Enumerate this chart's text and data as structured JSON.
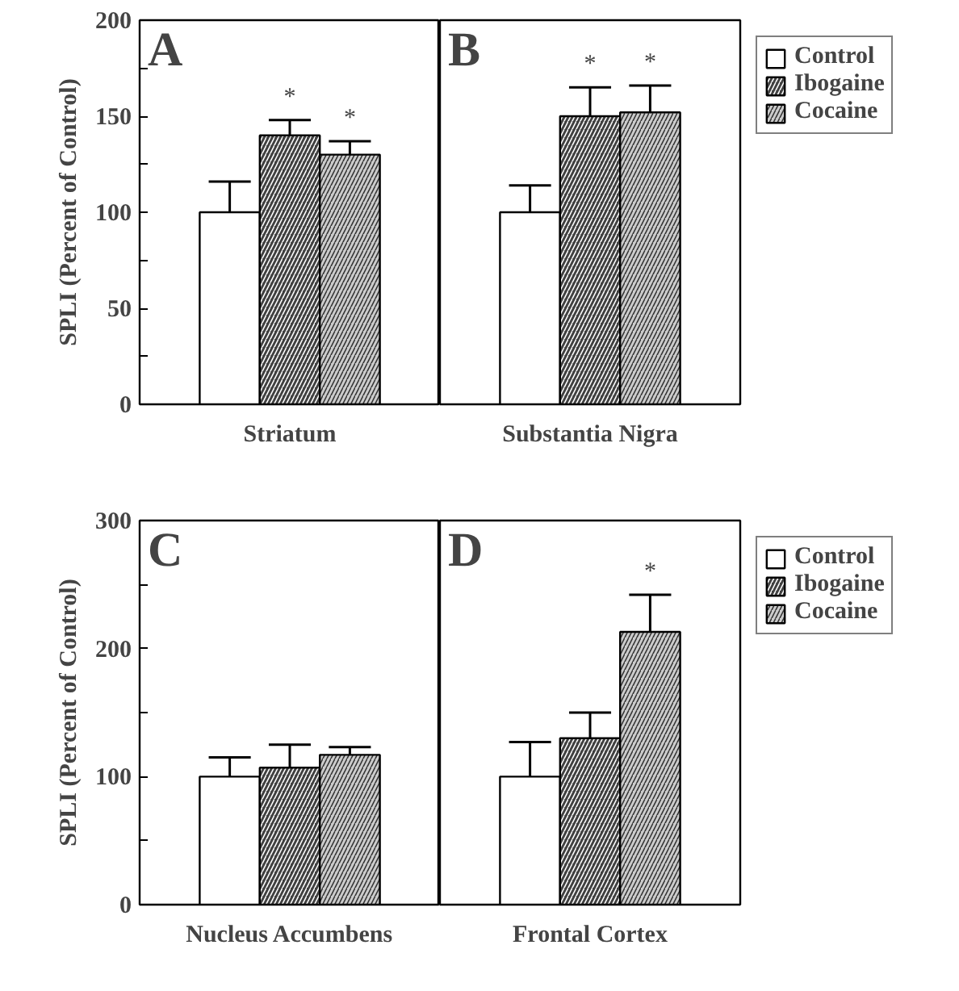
{
  "chart_data": [
    {
      "type": "bar",
      "title": "A",
      "ylabel": "SPLI (Percent of Control)",
      "categories": [
        "Striatum"
      ],
      "ylim": [
        0,
        200
      ],
      "yticks": [
        0,
        {
          "value": 25,
          "label": null
        },
        50,
        {
          "value": 75,
          "label": null
        },
        100,
        {
          "value": 125,
          "label": null
        },
        150,
        {
          "value": 175,
          "label": null
        },
        200
      ],
      "grid": false,
      "legend": false,
      "series": [
        {
          "color": "#ffffff",
          "values": [
            100
          ],
          "errors": [
            [
              100,
              116
            ]
          ]
        },
        {
          "color": "#404040",
          "values": [
            140
          ],
          "errors": [
            [
              140,
              148
            ]
          ],
          "value_labels": [
            "*"
          ]
        },
        {
          "color": "#cccccc",
          "values": [
            130
          ],
          "errors": [
            [
              130,
              137
            ]
          ],
          "value_labels": [
            "*"
          ]
        }
      ]
    },
    {
      "type": "bar",
      "title": "B",
      "categories": [
        "Substantia Nigra"
      ],
      "ylim": [
        0,
        200
      ],
      "tick_labels": "x",
      "grid": false,
      "legend": "top right",
      "series": [
        {
          "name": "Control",
          "color": "#ffffff",
          "values": [
            100
          ],
          "errors": [
            [
              100,
              114
            ]
          ]
        },
        {
          "name": "Ibogaine",
          "color": "#404040",
          "values": [
            150
          ],
          "errors": [
            [
              150,
              165
            ]
          ],
          "value_labels": [
            "*"
          ]
        },
        {
          "name": "Cocaine",
          "color": "#cccccc",
          "values": [
            152
          ],
          "errors": [
            [
              152,
              166
            ]
          ],
          "value_labels": [
            "*"
          ]
        }
      ]
    },
    {
      "type": "bar",
      "title": "C",
      "ylabel": "SPLI (Percent of Control)",
      "categories": [
        "Nucleus Accumbens"
      ],
      "ylim": [
        0,
        300
      ],
      "yticks": [
        0,
        {
          "value": 50,
          "label": null
        },
        100,
        {
          "value": 150,
          "label": null
        },
        200,
        {
          "value": 250,
          "label": null
        },
        300
      ],
      "grid": false,
      "legend": false,
      "series": [
        {
          "color": "#ffffff",
          "values": [
            100
          ],
          "errors": [
            [
              100,
              115
            ]
          ]
        },
        {
          "color": "#404040",
          "values": [
            107
          ],
          "errors": [
            [
              107,
              125
            ]
          ]
        },
        {
          "color": "#cccccc",
          "values": [
            117
          ],
          "errors": [
            [
              117,
              123
            ]
          ]
        }
      ]
    },
    {
      "type": "bar",
      "title": "D",
      "categories": [
        "Frontal Cortex"
      ],
      "ylim": [
        0,
        300
      ],
      "tick_labels": "x",
      "grid": false,
      "legend": "top right",
      "series": [
        {
          "name": "Control",
          "color": "#ffffff",
          "values": [
            100
          ],
          "errors": [
            [
              100,
              127
            ]
          ]
        },
        {
          "name": "Ibogaine",
          "color": "#404040",
          "values": [
            130
          ],
          "errors": [
            [
              130,
              150
            ]
          ]
        },
        {
          "name": "Cocaine",
          "color": "#cccccc",
          "values": [
            213
          ],
          "errors": [
            [
              213,
              242
            ]
          ],
          "value_labels": [
            "*"
          ]
        }
      ]
    }
  ]
}
